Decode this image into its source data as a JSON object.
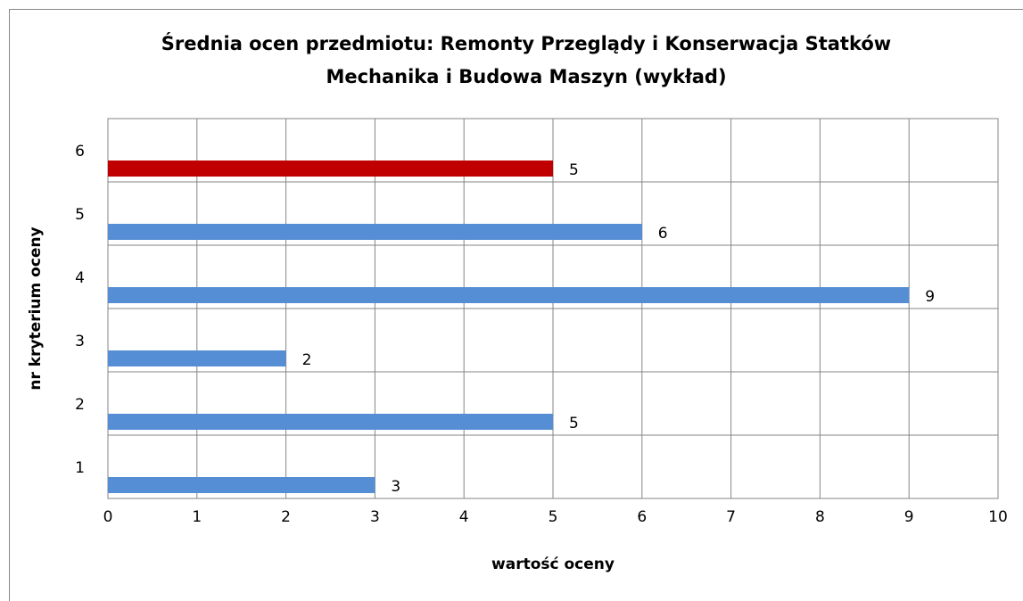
{
  "chart_data": {
    "type": "barh",
    "title": [
      "Średnia ocen przedmiotu: Remonty Przeglądy i Konserwacja Statków",
      "Mechanika i Budowa Maszyn (wykład)"
    ],
    "xlabel": "wartość oceny",
    "ylabel": "nr kryterium oceny",
    "categories": [
      "1",
      "2",
      "3",
      "4",
      "5",
      "6"
    ],
    "values": [
      3,
      5,
      2,
      9,
      6,
      5
    ],
    "colors": [
      "#558ed5",
      "#558ed5",
      "#558ed5",
      "#558ed5",
      "#558ed5",
      "#c00000"
    ],
    "xlim": [
      0,
      10
    ],
    "xticks": [
      0,
      1,
      2,
      3,
      4,
      5,
      6,
      7,
      8,
      9,
      10
    ],
    "grid": true
  }
}
